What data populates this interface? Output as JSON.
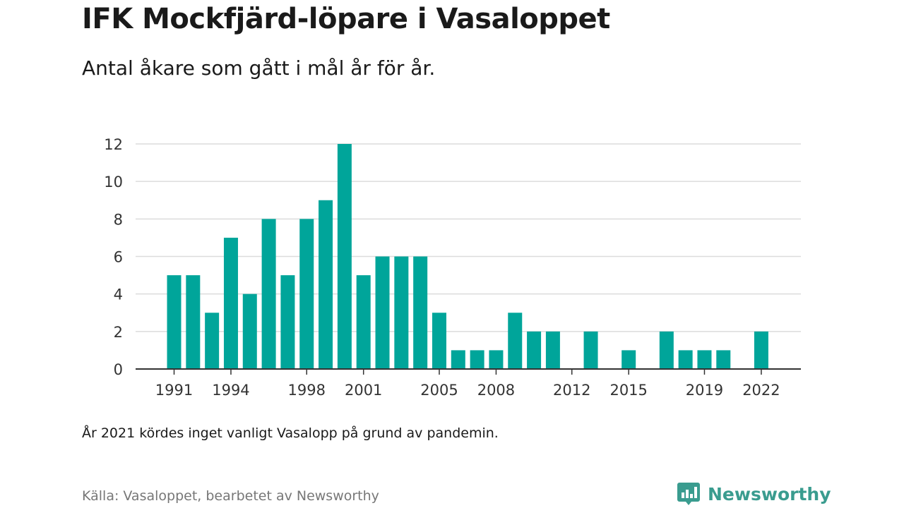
{
  "chart_data": {
    "type": "bar",
    "title": "IFK Mockfjärd-löpare i Vasaloppet",
    "subtitle": "Antal åkare som gått i mål år för år.",
    "note": "År 2021 kördes inget vanligt Vasalopp på grund av pandemin.",
    "source": "Källa: Vasaloppet, bearbetet av Newsworthy",
    "brand": "Newsworthy",
    "xlabel": "",
    "ylabel": "",
    "x": [
      1991,
      1992,
      1993,
      1994,
      1995,
      1996,
      1997,
      1998,
      1999,
      2000,
      2001,
      2002,
      2003,
      2004,
      2005,
      2006,
      2007,
      2008,
      2009,
      2010,
      2011,
      2012,
      2013,
      2014,
      2015,
      2016,
      2017,
      2018,
      2019,
      2020,
      2021,
      2022
    ],
    "values": [
      5,
      5,
      3,
      7,
      4,
      8,
      5,
      8,
      9,
      12,
      5,
      6,
      6,
      6,
      3,
      1,
      1,
      1,
      3,
      2,
      2,
      0,
      2,
      0,
      1,
      0,
      2,
      1,
      1,
      1,
      0,
      2
    ],
    "x_ticks": [
      1991,
      1994,
      1998,
      2001,
      2005,
      2008,
      2012,
      2015,
      2019,
      2022
    ],
    "y_ticks": [
      0,
      2,
      4,
      6,
      8,
      10,
      12
    ],
    "ylim": [
      0,
      12
    ],
    "grid": true,
    "legend": "none",
    "bar_color": "#00a59a",
    "brand_color": "#3a9c8f"
  }
}
